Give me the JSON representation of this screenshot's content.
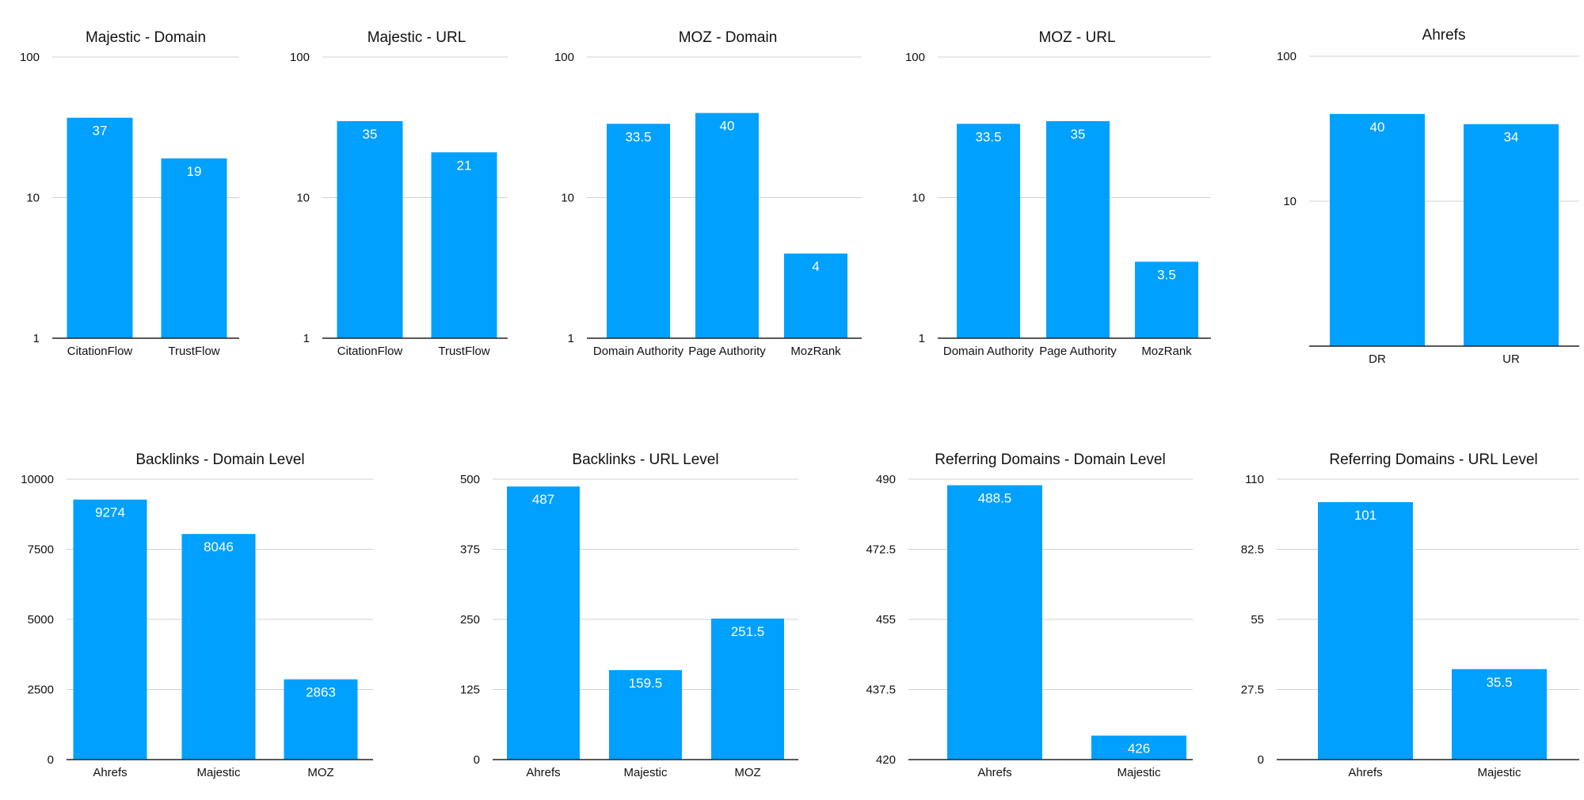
{
  "chart_data": [
    {
      "type": "bar",
      "title": "Majestic - Domain",
      "scale": "log",
      "ylim": [
        1,
        100
      ],
      "yticks": [
        1,
        10,
        100
      ],
      "ytick_labels": [
        "1",
        "10",
        "100"
      ],
      "categories": [
        "CitationFlow",
        "TrustFlow"
      ],
      "values": [
        37,
        19
      ],
      "labels": [
        "37",
        "19"
      ],
      "color": "#00a0ff",
      "grid": true
    },
    {
      "type": "bar",
      "title": "Majestic - URL",
      "scale": "log",
      "ylim": [
        1,
        100
      ],
      "yticks": [
        1,
        10,
        100
      ],
      "ytick_labels": [
        "1",
        "10",
        "100"
      ],
      "categories": [
        "CitationFlow",
        "TrustFlow"
      ],
      "values": [
        35,
        21
      ],
      "labels": [
        "35",
        "21"
      ],
      "color": "#00a0ff",
      "grid": true
    },
    {
      "type": "bar",
      "title": "MOZ - Domain",
      "scale": "log",
      "ylim": [
        1,
        100
      ],
      "yticks": [
        1,
        10,
        100
      ],
      "ytick_labels": [
        "1",
        "10",
        "100"
      ],
      "categories": [
        "Domain Authority",
        "Page Authority",
        "MozRank"
      ],
      "values": [
        33.5,
        40,
        4
      ],
      "labels": [
        "33.5",
        "40",
        "4"
      ],
      "color": "#00a0ff",
      "grid": true
    },
    {
      "type": "bar",
      "title": "MOZ - URL",
      "scale": "log",
      "ylim": [
        1,
        100
      ],
      "yticks": [
        1,
        10,
        100
      ],
      "ytick_labels": [
        "1",
        "10",
        "100"
      ],
      "categories": [
        "Domain Authority",
        "Page Authority",
        "MozRank"
      ],
      "values": [
        33.5,
        35,
        3.5
      ],
      "labels": [
        "33.5",
        "35",
        "3.5"
      ],
      "color": "#00a0ff",
      "grid": true
    },
    {
      "type": "bar",
      "title": "Ahrefs",
      "scale": "log",
      "ylim": [
        1,
        100
      ],
      "yticks": [
        10,
        100
      ],
      "ytick_labels": [
        "10",
        "100"
      ],
      "categories": [
        "DR",
        "UR"
      ],
      "values": [
        40,
        34
      ],
      "labels": [
        "40",
        "34"
      ],
      "color": "#00a0ff",
      "grid": true
    },
    {
      "type": "bar",
      "title": "Backlinks - Domain Level",
      "scale": "linear",
      "ylim": [
        0,
        10000
      ],
      "yticks": [
        0,
        2500,
        5000,
        7500,
        10000
      ],
      "ytick_labels": [
        "0",
        "2500",
        "5000",
        "7500",
        "10000"
      ],
      "categories": [
        "Ahrefs",
        "Majestic",
        "MOZ"
      ],
      "values": [
        9274,
        8046,
        2863
      ],
      "labels": [
        "9274",
        "8046",
        "2863"
      ],
      "color": "#00a0ff",
      "grid": true
    },
    {
      "type": "bar",
      "title": "Backlinks - URL Level",
      "scale": "linear",
      "ylim": [
        0,
        500
      ],
      "yticks": [
        0,
        125,
        250,
        375,
        500
      ],
      "ytick_labels": [
        "0",
        "125",
        "250",
        "375",
        "500"
      ],
      "categories": [
        "Ahrefs",
        "Majestic",
        "MOZ"
      ],
      "values": [
        487,
        159.5,
        251.5
      ],
      "labels": [
        "487",
        "159.5",
        "251.5"
      ],
      "color": "#00a0ff",
      "grid": true
    },
    {
      "type": "bar",
      "title": "Referring Domains - Domain Level",
      "scale": "linear",
      "ylim": [
        420,
        490
      ],
      "yticks": [
        420,
        437.5,
        455,
        472.5,
        490
      ],
      "ytick_labels": [
        "420",
        "437.5",
        "455",
        "472.5",
        "490"
      ],
      "categories": [
        "Ahrefs",
        "Majestic"
      ],
      "values": [
        488.5,
        426
      ],
      "labels": [
        "488.5",
        "426"
      ],
      "color": "#00a0ff",
      "grid": true
    },
    {
      "type": "bar",
      "title": "Referring Domains - URL Level",
      "scale": "linear",
      "ylim": [
        0,
        110
      ],
      "yticks": [
        0,
        27.5,
        55,
        82.5,
        110
      ],
      "ytick_labels": [
        "0",
        "27.5",
        "55",
        "82.5",
        "110"
      ],
      "categories": [
        "Ahrefs",
        "Majestic"
      ],
      "values": [
        101,
        35.5
      ],
      "labels": [
        "101",
        "35.5"
      ],
      "color": "#00a0ff",
      "grid": true
    }
  ]
}
